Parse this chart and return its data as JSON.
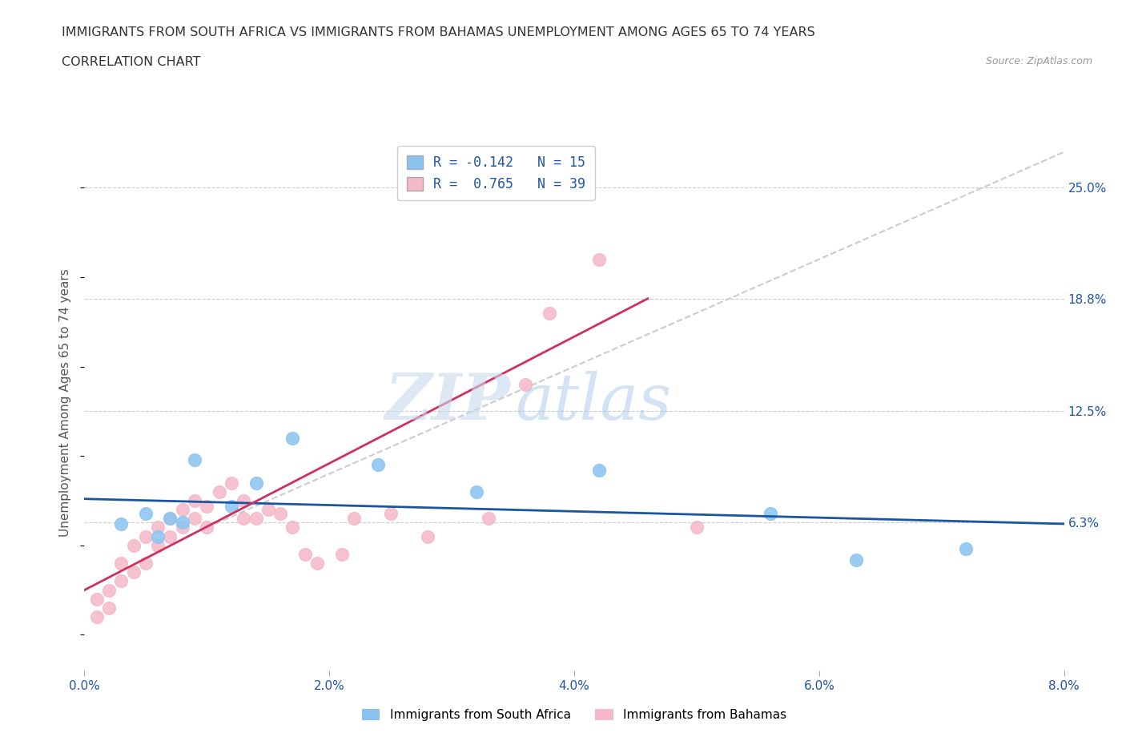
{
  "title_line1": "IMMIGRANTS FROM SOUTH AFRICA VS IMMIGRANTS FROM BAHAMAS UNEMPLOYMENT AMONG AGES 65 TO 74 YEARS",
  "title_line2": "CORRELATION CHART",
  "source_text": "Source: ZipAtlas.com",
  "ylabel": "Unemployment Among Ages 65 to 74 years",
  "xlim": [
    0.0,
    0.08
  ],
  "ylim": [
    -0.02,
    0.28
  ],
  "xticks": [
    0.0,
    0.02,
    0.04,
    0.06,
    0.08
  ],
  "xtick_labels": [
    "0.0%",
    "2.0%",
    "4.0%",
    "6.0%",
    "8.0%"
  ],
  "ytick_vals": [
    0.063,
    0.125,
    0.188,
    0.25
  ],
  "ytick_labels": [
    "6.3%",
    "12.5%",
    "18.8%",
    "25.0%"
  ],
  "south_africa_R": -0.142,
  "south_africa_N": 15,
  "bahamas_R": 0.765,
  "bahamas_N": 39,
  "color_south_africa": "#89c4f0",
  "color_bahamas": "#f5b8c8",
  "color_south_africa_line": "#1a55a0",
  "color_bahamas_line": "#d03060",
  "color_trend_gray": "#cccccc",
  "watermark_zip": "ZIP",
  "watermark_atlas": "atlas",
  "south_africa_x": [
    0.003,
    0.005,
    0.006,
    0.007,
    0.008,
    0.009,
    0.012,
    0.014,
    0.017,
    0.024,
    0.032,
    0.042,
    0.056,
    0.063,
    0.072
  ],
  "south_africa_y": [
    0.062,
    0.068,
    0.055,
    0.065,
    0.063,
    0.098,
    0.072,
    0.085,
    0.11,
    0.095,
    0.08,
    0.092,
    0.068,
    0.042,
    0.048
  ],
  "bahamas_x": [
    0.001,
    0.001,
    0.002,
    0.002,
    0.003,
    0.003,
    0.004,
    0.004,
    0.005,
    0.005,
    0.006,
    0.006,
    0.007,
    0.007,
    0.008,
    0.008,
    0.009,
    0.009,
    0.01,
    0.01,
    0.011,
    0.012,
    0.013,
    0.013,
    0.014,
    0.015,
    0.016,
    0.017,
    0.018,
    0.019,
    0.021,
    0.022,
    0.025,
    0.028,
    0.033,
    0.036,
    0.038,
    0.042,
    0.05
  ],
  "bahamas_y": [
    0.01,
    0.02,
    0.015,
    0.025,
    0.03,
    0.04,
    0.035,
    0.05,
    0.04,
    0.055,
    0.05,
    0.06,
    0.055,
    0.065,
    0.06,
    0.07,
    0.065,
    0.075,
    0.06,
    0.072,
    0.08,
    0.085,
    0.065,
    0.075,
    0.065,
    0.07,
    0.068,
    0.06,
    0.045,
    0.04,
    0.045,
    0.065,
    0.068,
    0.055,
    0.065,
    0.14,
    0.18,
    0.21,
    0.06
  ],
  "sa_line_x0": 0.0,
  "sa_line_y0": 0.076,
  "sa_line_x1": 0.08,
  "sa_line_y1": 0.062,
  "bah_line_x0": 0.0,
  "bah_line_y0": 0.025,
  "bah_line_x1": 0.046,
  "bah_line_y1": 0.188,
  "gray_line_x0": 0.01,
  "gray_line_y0": 0.06,
  "gray_line_x1": 0.08,
  "gray_line_y1": 0.27
}
